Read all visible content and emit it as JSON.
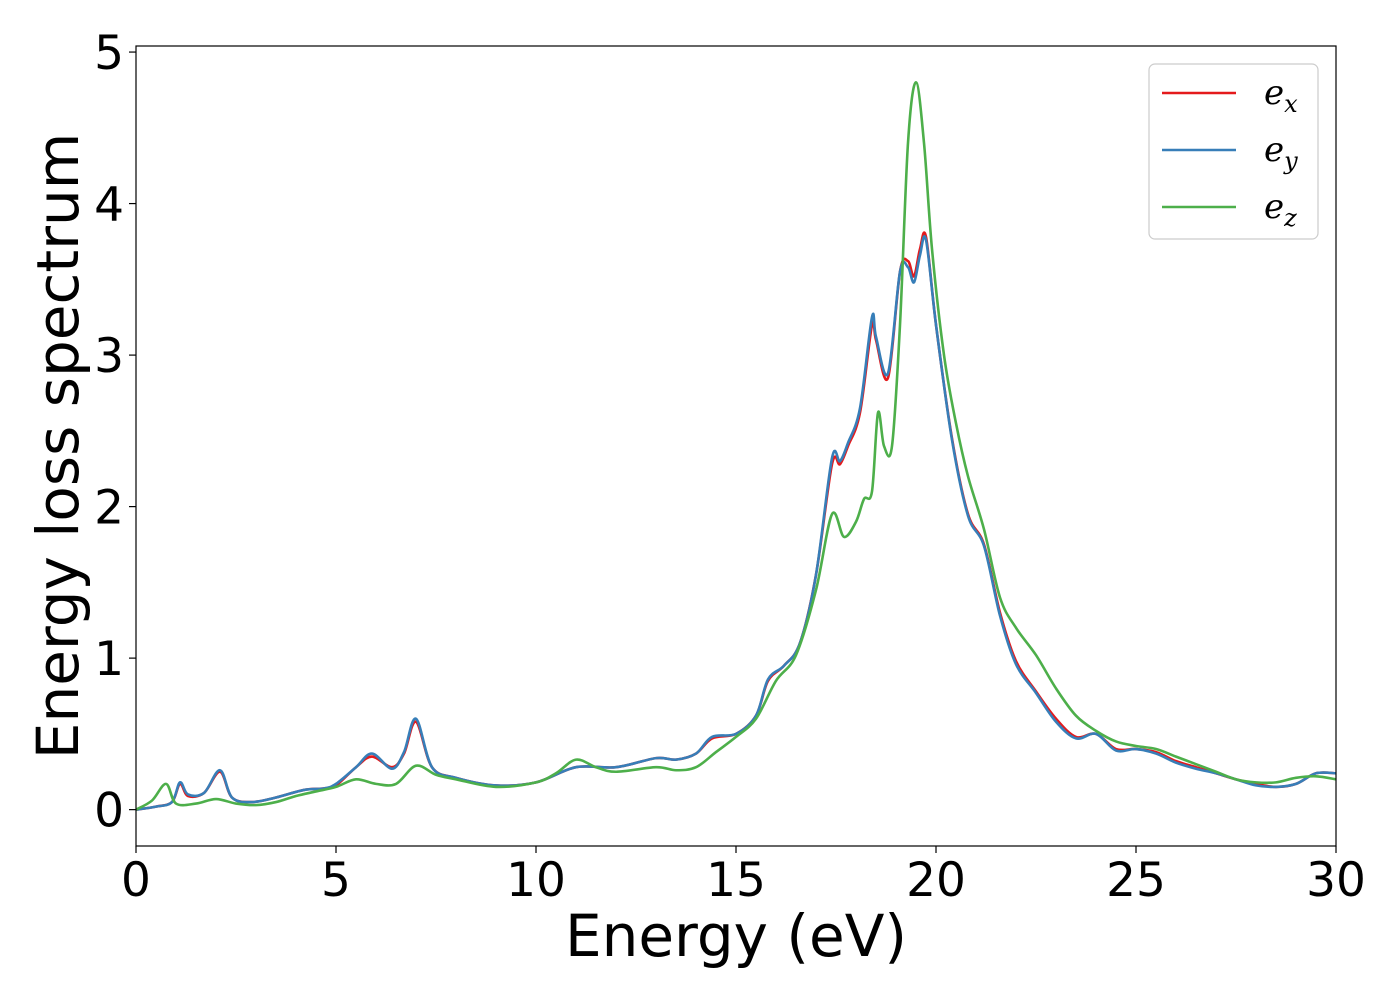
{
  "chart_data": {
    "type": "line",
    "xlabel": "Energy (eV)",
    "ylabel": "Energy loss spectrum",
    "xlim": [
      0,
      30
    ],
    "ylim": [
      -0.24,
      5.04
    ],
    "xticks": [
      0,
      5,
      10,
      15,
      20,
      25,
      30
    ],
    "yticks": [
      0,
      1,
      2,
      3,
      4,
      5
    ],
    "grid": false,
    "legend_position": "top-right",
    "series": [
      {
        "name": "e_x",
        "label_base": "e",
        "label_sub": "x",
        "color": "#e41a1c",
        "x": [
          0,
          0.5,
          0.9,
          1.1,
          1.3,
          1.7,
          2.1,
          2.4,
          2.9,
          3.5,
          4.2,
          4.7,
          5.0,
          5.5,
          5.9,
          6.4,
          6.7,
          7.0,
          7.4,
          8.0,
          9.0,
          10.0,
          11.0,
          12.0,
          13.0,
          13.5,
          14.0,
          14.4,
          15.0,
          15.5,
          15.8,
          16.2,
          16.6,
          17.0,
          17.4,
          17.6,
          17.8,
          18.1,
          18.4,
          18.5,
          18.8,
          19.1,
          19.3,
          19.45,
          19.6,
          19.75,
          20.0,
          20.4,
          20.8,
          21.2,
          21.6,
          22.0,
          22.5,
          23.0,
          23.5,
          24.0,
          24.5,
          25.0,
          25.5,
          26.0,
          26.5,
          27.0,
          27.5,
          28.0,
          28.5,
          29.0,
          29.5,
          30.0
        ],
        "y": [
          0,
          0.02,
          0.05,
          0.17,
          0.09,
          0.11,
          0.25,
          0.08,
          0.05,
          0.08,
          0.13,
          0.14,
          0.16,
          0.28,
          0.35,
          0.28,
          0.37,
          0.58,
          0.28,
          0.21,
          0.16,
          0.18,
          0.28,
          0.28,
          0.34,
          0.33,
          0.37,
          0.47,
          0.5,
          0.62,
          0.85,
          0.95,
          1.1,
          1.55,
          2.28,
          2.28,
          2.4,
          2.62,
          3.2,
          3.1,
          2.85,
          3.55,
          3.62,
          3.52,
          3.7,
          3.78,
          3.2,
          2.45,
          1.95,
          1.75,
          1.3,
          0.98,
          0.78,
          0.6,
          0.48,
          0.5,
          0.4,
          0.4,
          0.38,
          0.32,
          0.28,
          0.24,
          0.2,
          0.17,
          0.15,
          0.17,
          0.24,
          0.24
        ]
      },
      {
        "name": "e_y",
        "label_base": "e",
        "label_sub": "y",
        "color": "#377eb8",
        "x": [
          0,
          0.5,
          0.9,
          1.1,
          1.3,
          1.7,
          2.1,
          2.4,
          2.9,
          3.5,
          4.2,
          4.7,
          5.0,
          5.5,
          5.9,
          6.4,
          6.7,
          7.0,
          7.4,
          8.0,
          9.0,
          10.0,
          11.0,
          12.0,
          13.0,
          13.5,
          14.0,
          14.4,
          15.0,
          15.5,
          15.8,
          16.2,
          16.6,
          17.0,
          17.4,
          17.6,
          17.8,
          18.1,
          18.4,
          18.5,
          18.8,
          19.1,
          19.3,
          19.45,
          19.6,
          19.75,
          20.0,
          20.4,
          20.8,
          21.2,
          21.6,
          22.0,
          22.5,
          23.0,
          23.5,
          24.0,
          24.5,
          25.0,
          25.5,
          26.0,
          26.5,
          27.0,
          27.5,
          28.0,
          28.5,
          29.0,
          29.5,
          30.0
        ],
        "y": [
          0,
          0.02,
          0.05,
          0.18,
          0.1,
          0.11,
          0.26,
          0.08,
          0.05,
          0.08,
          0.13,
          0.14,
          0.17,
          0.28,
          0.37,
          0.27,
          0.38,
          0.6,
          0.28,
          0.21,
          0.16,
          0.18,
          0.28,
          0.28,
          0.34,
          0.33,
          0.37,
          0.48,
          0.5,
          0.62,
          0.86,
          0.95,
          1.1,
          1.55,
          2.32,
          2.3,
          2.42,
          2.65,
          3.25,
          3.12,
          2.88,
          3.55,
          3.58,
          3.48,
          3.66,
          3.76,
          3.2,
          2.44,
          1.94,
          1.74,
          1.28,
          0.96,
          0.77,
          0.58,
          0.47,
          0.5,
          0.39,
          0.4,
          0.37,
          0.31,
          0.27,
          0.24,
          0.2,
          0.16,
          0.15,
          0.17,
          0.24,
          0.24
        ]
      },
      {
        "name": "e_z",
        "label_base": "e",
        "label_sub": "z",
        "color": "#4daf4a",
        "x": [
          0,
          0.4,
          0.75,
          1.0,
          1.5,
          2.0,
          2.5,
          3.0,
          3.5,
          4.0,
          4.5,
          5.0,
          5.5,
          6.0,
          6.5,
          7.0,
          7.5,
          8.0,
          9.0,
          10.0,
          10.5,
          11.0,
          11.5,
          12.0,
          13.0,
          13.5,
          14.0,
          14.5,
          15.0,
          15.5,
          16.0,
          16.5,
          17.0,
          17.4,
          17.7,
          18.0,
          18.2,
          18.4,
          18.55,
          18.7,
          18.9,
          19.1,
          19.3,
          19.5,
          19.7,
          19.9,
          20.2,
          20.5,
          20.8,
          21.2,
          21.6,
          22.0,
          22.5,
          23.0,
          23.5,
          24.0,
          24.5,
          25.0,
          25.5,
          26.0,
          26.5,
          27.0,
          27.5,
          28.0,
          28.5,
          29.0,
          29.5,
          30.0
        ],
        "y": [
          0,
          0.06,
          0.17,
          0.04,
          0.04,
          0.07,
          0.04,
          0.03,
          0.05,
          0.09,
          0.12,
          0.15,
          0.2,
          0.17,
          0.17,
          0.29,
          0.23,
          0.2,
          0.15,
          0.18,
          0.24,
          0.33,
          0.28,
          0.25,
          0.28,
          0.26,
          0.28,
          0.38,
          0.48,
          0.6,
          0.85,
          1.02,
          1.45,
          1.95,
          1.8,
          1.9,
          2.05,
          2.1,
          2.62,
          2.4,
          2.4,
          3.2,
          4.4,
          4.8,
          4.4,
          3.7,
          3.0,
          2.55,
          2.2,
          1.85,
          1.4,
          1.2,
          1.02,
          0.8,
          0.62,
          0.52,
          0.45,
          0.42,
          0.4,
          0.35,
          0.3,
          0.25,
          0.2,
          0.18,
          0.18,
          0.21,
          0.22,
          0.2
        ]
      }
    ]
  }
}
